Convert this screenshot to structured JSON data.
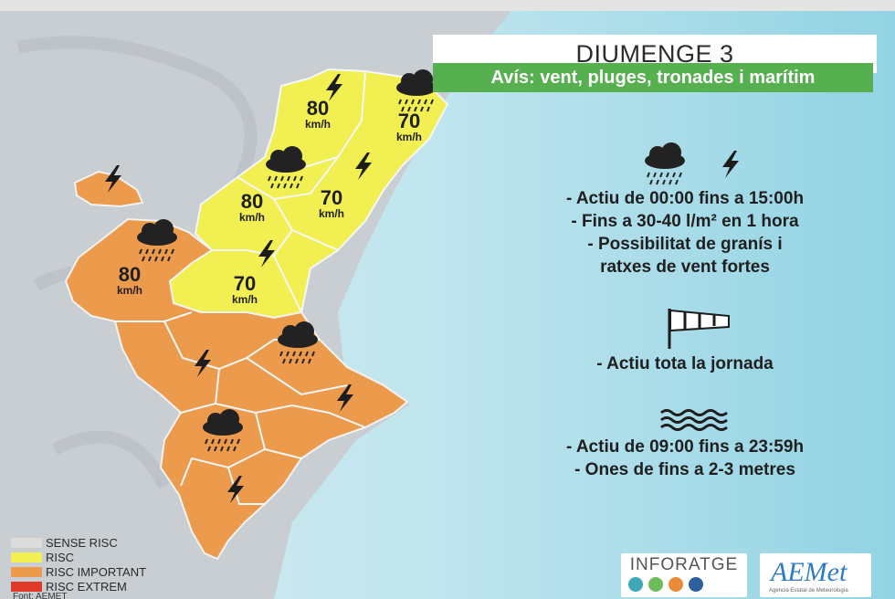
{
  "title": "DIUMENGE 3",
  "subtitle": "Avís: vent, pluges, tronades i marítim",
  "speeds": [
    {
      "num": "80",
      "unit": "km/h"
    },
    {
      "num": "70",
      "unit": "km/h"
    },
    {
      "num": "80",
      "unit": "km/h"
    },
    {
      "num": "70",
      "unit": "km/h"
    },
    {
      "num": "80",
      "unit": "km/h"
    },
    {
      "num": "70",
      "unit": "km/h"
    }
  ],
  "storm_info": {
    "line1": "- Actiu de 00:00 fins a 15:00h",
    "line2": "- Fins a 30-40 l/m² en 1 hora",
    "line3": "- Possibilitat de granís i",
    "line4": "ratxes de vent fortes"
  },
  "wind_info": {
    "line1": "- Actiu tota la jornada"
  },
  "sea_info": {
    "line1": "- Actiu de 09:00 fins a 23:59h",
    "line2": "- Ones de fins a 2-3 metres"
  },
  "legend": [
    {
      "label": "SENSE RISC",
      "color": "#dcdcdc"
    },
    {
      "label": "RISC",
      "color": "#f1ef52"
    },
    {
      "label": "RISC IMPORTANT",
      "color": "#ec9a4c"
    },
    {
      "label": "RISC EXTREM",
      "color": "#e03a2a"
    }
  ],
  "source": "Font: AEMET",
  "logos": {
    "inforatge": "INFORATGE",
    "aemet": "AEMet",
    "aemet_sub": "Agencia Estatal de Meteorología"
  },
  "colors": {
    "risk_yellow": "#f1ef52",
    "risk_orange": "#ec9a4c",
    "banner_green": "#56b04f",
    "sea": "#c4e6ee"
  },
  "icons": [
    "rain-cloud-icon",
    "lightning-icon",
    "windsock-icon",
    "waves-icon"
  ]
}
